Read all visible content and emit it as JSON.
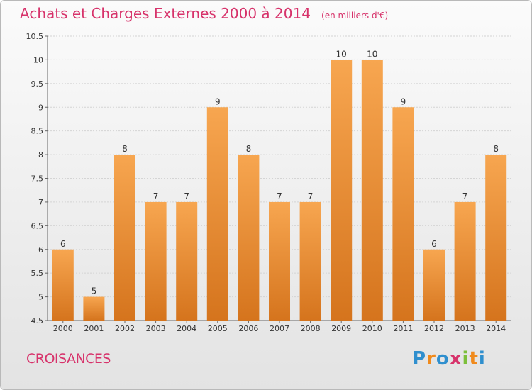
{
  "header": {
    "title": "Achats et Charges Externes 2000 à 2014",
    "unit": "(en milliers d'€)"
  },
  "footer": {
    "city": "CROISANCES",
    "logo": "Proxiti",
    "logo_letters": [
      "P",
      "r",
      "o",
      "x",
      "i",
      "t",
      "i"
    ]
  },
  "colors": {
    "title": "#d7336b",
    "bar_light": "#f7a650",
    "bar_dark": "#d5741d"
  },
  "chart_data": {
    "type": "bar",
    "title": "Achats et Charges Externes 2000 à 2014",
    "categories": [
      "2000",
      "2001",
      "2002",
      "2003",
      "2004",
      "2005",
      "2006",
      "2007",
      "2008",
      "2009",
      "2010",
      "2011",
      "2012",
      "2013",
      "2014"
    ],
    "values": [
      6,
      5,
      8,
      7,
      7,
      9,
      8,
      7,
      7,
      10,
      10,
      9,
      6,
      7,
      8
    ],
    "ylim": [
      4.5,
      10.5
    ],
    "yticks": [
      "4.5",
      "5",
      "5.5",
      "6",
      "6.5",
      "7",
      "7.5",
      "8",
      "8.5",
      "9",
      "9.5",
      "10",
      "10.5"
    ],
    "grid": true
  }
}
